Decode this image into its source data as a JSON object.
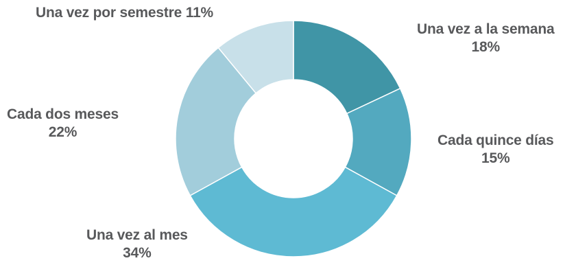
{
  "chart_data": {
    "type": "pie",
    "donut": true,
    "categories": [
      "Una vez a la semana",
      "Cada quince días",
      "Una vez al mes",
      "Cada dos meses",
      "Una vez por semestre"
    ],
    "values": [
      18,
      15,
      34,
      22,
      11
    ],
    "value_labels": [
      "18%",
      "15%",
      "34%",
      "22%",
      "11%"
    ],
    "colors": [
      "#4095a6",
      "#53a9bf",
      "#5ebad3",
      "#a2cddb",
      "#c8e0e9"
    ],
    "title": "",
    "legend": "none",
    "label_color": "#58595b"
  }
}
